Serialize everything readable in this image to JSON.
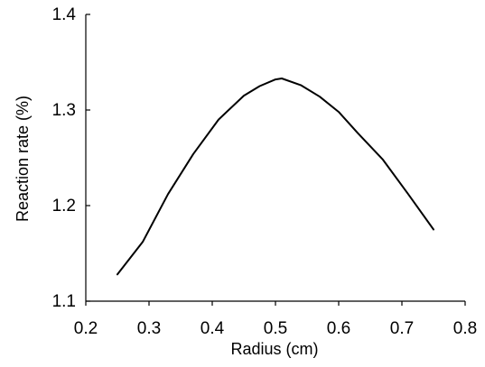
{
  "chart_data": {
    "type": "line",
    "title": "",
    "xlabel": "Radius (cm)",
    "ylabel": "Reaction rate (%)",
    "xlim": [
      0.2,
      0.8
    ],
    "ylim": [
      1.1,
      1.4
    ],
    "x_ticks": [
      0.2,
      0.3,
      0.4,
      0.5,
      0.6,
      0.7,
      0.8
    ],
    "y_ticks": [
      1.1,
      1.2,
      1.3,
      1.4
    ],
    "x_tick_labels": [
      "0.2",
      "0.3",
      "0.4",
      "0.5",
      "0.6",
      "0.7",
      "0.8"
    ],
    "y_tick_labels": [
      "1.1",
      "1.2",
      "1.3",
      "1.4"
    ],
    "grid": false,
    "legend": "none",
    "series": [
      {
        "color": "#000000",
        "x": [
          0.25,
          0.29,
          0.33,
          0.37,
          0.41,
          0.45,
          0.475,
          0.5,
          0.51,
          0.54,
          0.57,
          0.6,
          0.63,
          0.67,
          0.71,
          0.75
        ],
        "y": [
          1.128,
          1.162,
          1.212,
          1.254,
          1.29,
          1.315,
          1.325,
          1.332,
          1.333,
          1.326,
          1.314,
          1.298,
          1.276,
          1.248,
          1.212,
          1.175
        ]
      }
    ]
  }
}
